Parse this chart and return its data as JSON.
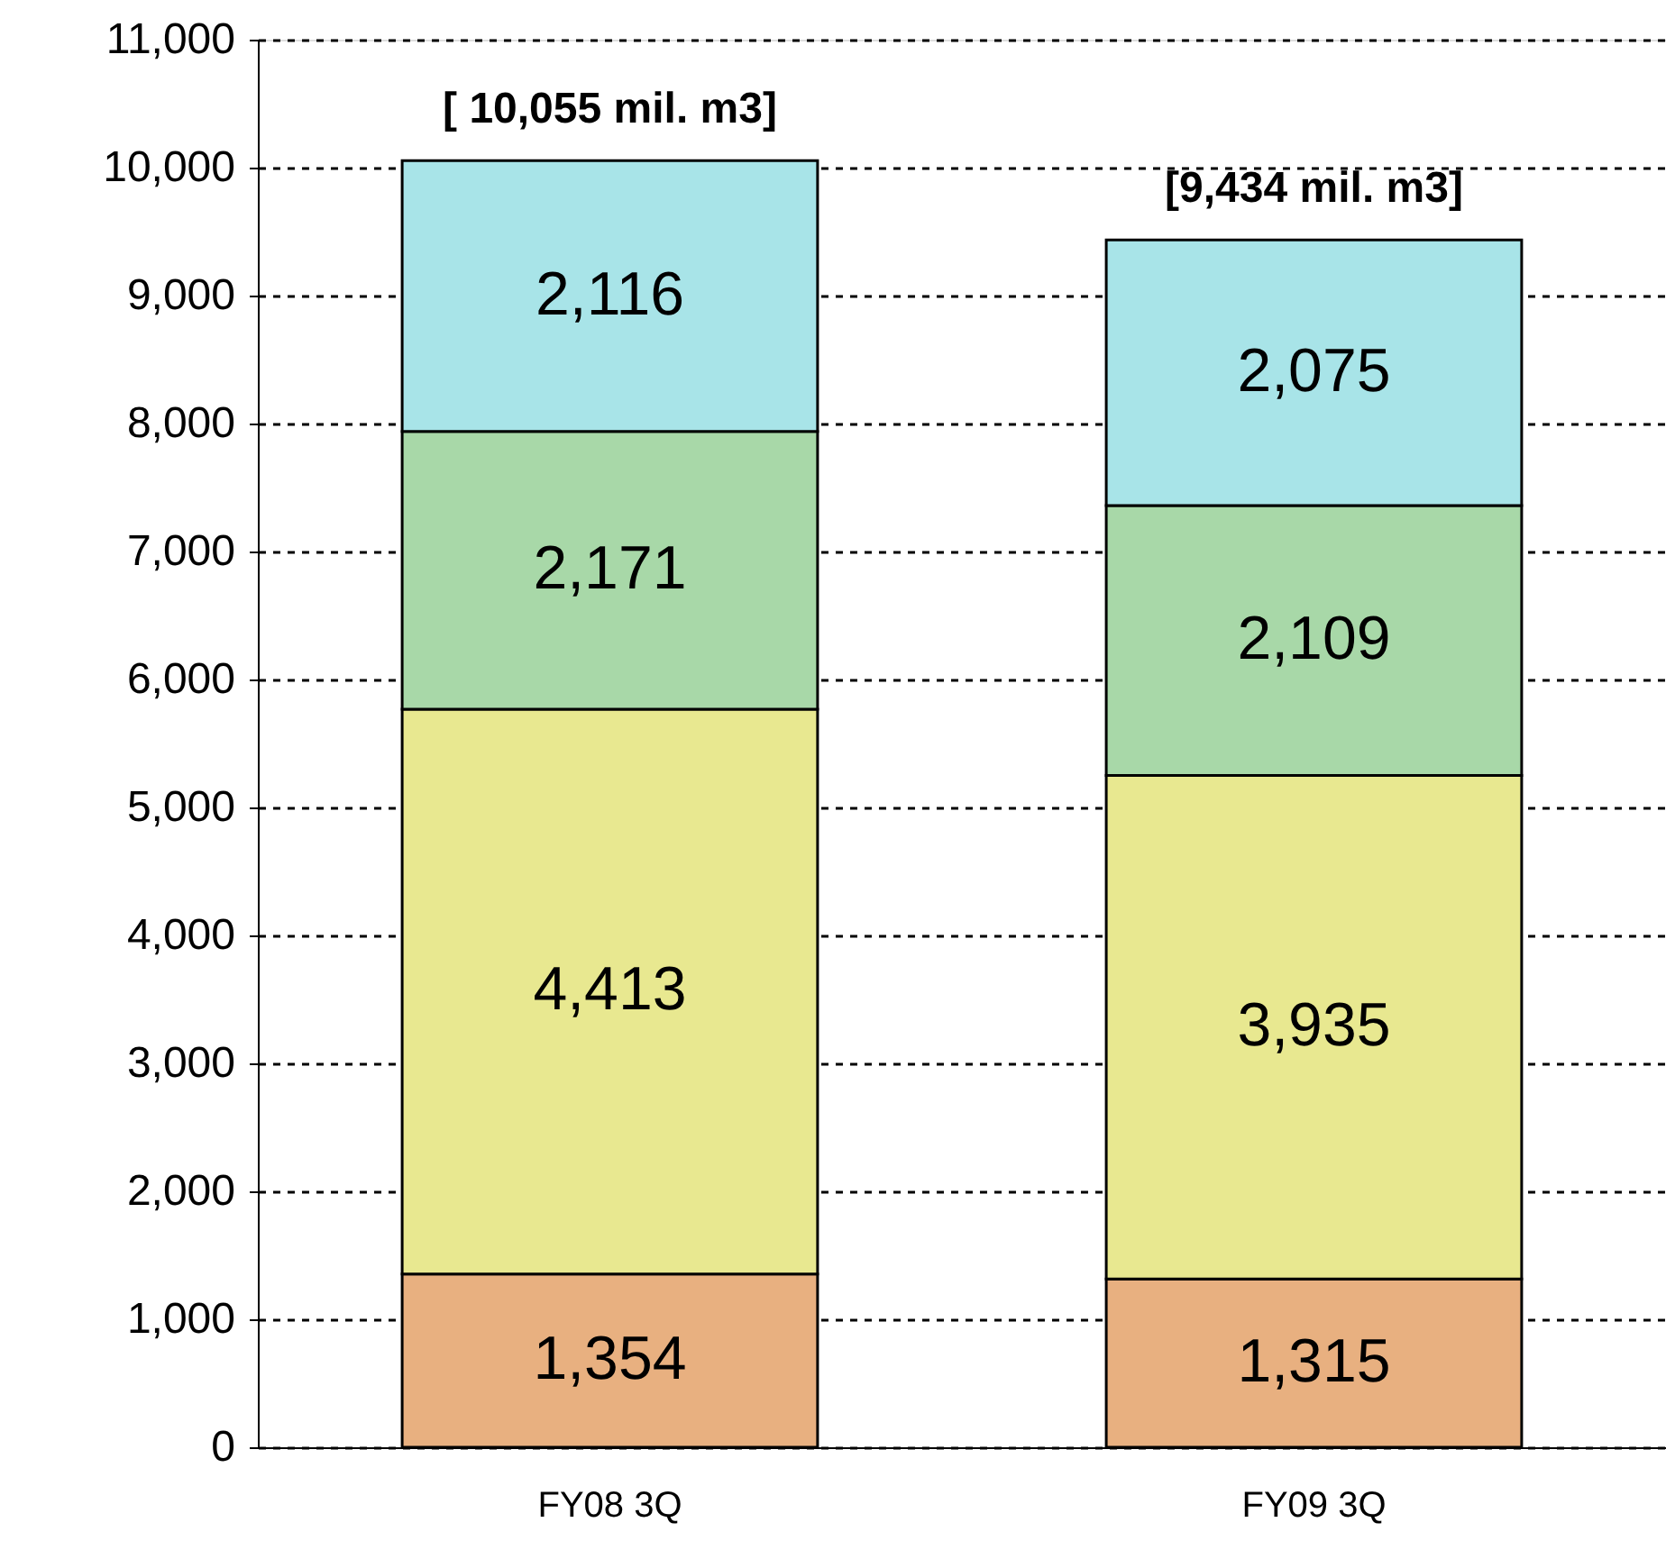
{
  "chart_data": {
    "type": "bar",
    "stacked": true,
    "categories": [
      "FY08 3Q",
      "FY09 3Q"
    ],
    "series": [
      {
        "color": "#e8b080",
        "values": [
          1354,
          1315
        ],
        "value_labels": [
          "1,354",
          "1,315"
        ]
      },
      {
        "color": "#e8e890",
        "values": [
          4413,
          3935
        ],
        "value_labels": [
          "4,413",
          "3,935"
        ]
      },
      {
        "color": "#a8d8a8",
        "values": [
          2171,
          2109
        ],
        "value_labels": [
          "2,171",
          "2,109"
        ]
      },
      {
        "color": "#a8e4e8",
        "values": [
          2116,
          2075
        ],
        "value_labels": [
          "2,116",
          "2,075"
        ]
      }
    ],
    "totals": [
      "[ 10,055 mil. m3]",
      "[9,434 mil. m3]"
    ],
    "ylim": [
      0,
      11000
    ],
    "yticks": [
      0,
      {
        "value": 1000,
        "label": "1,000"
      },
      {
        "value": 2000,
        "label": "2,000"
      },
      {
        "value": 3000,
        "label": "3,000"
      },
      {
        "value": 4000,
        "label": "4,000"
      },
      {
        "value": 5000,
        "label": "5,000"
      },
      {
        "value": 6000,
        "label": "6,000"
      },
      {
        "value": 7000,
        "label": "7,000"
      },
      {
        "value": 8000,
        "label": "8,000"
      },
      {
        "value": 9000,
        "label": "9,000"
      },
      {
        "value": 10000,
        "label": "10,000"
      },
      {
        "value": 11000,
        "label": "11,000"
      }
    ],
    "grid": "y"
  }
}
